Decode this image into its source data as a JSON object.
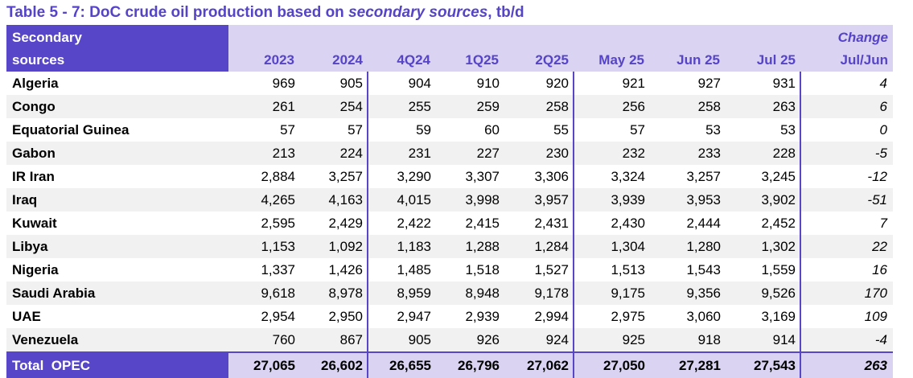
{
  "title": {
    "prefix": "Table 5 - 7: DoC crude oil production based on ",
    "italic": "secondary sources",
    "suffix": ", tb/d"
  },
  "colors": {
    "purple": "#5747C8",
    "lavender": "#DAD3F1",
    "title_text": "#5544C8",
    "header_text": "#5544C8",
    "stripe_gray": "#F1F1F1"
  },
  "table": {
    "header": {
      "label_line1": "Secondary",
      "label_line2": "sources",
      "columns": [
        "2023",
        "2024",
        "4Q24",
        "1Q25",
        "2Q25",
        "May 25",
        "Jun 25",
        "Jul 25"
      ],
      "change_line1": "Change",
      "change_line2": "Jul/Jun"
    },
    "rows": [
      {
        "name": "Algeria",
        "values": [
          "969",
          "905",
          "904",
          "910",
          "920",
          "921",
          "927",
          "931"
        ],
        "change": "4"
      },
      {
        "name": "Congo",
        "values": [
          "261",
          "254",
          "255",
          "259",
          "258",
          "256",
          "258",
          "263"
        ],
        "change": "6"
      },
      {
        "name": "Equatorial Guinea",
        "values": [
          "57",
          "57",
          "59",
          "60",
          "55",
          "57",
          "53",
          "53"
        ],
        "change": "0"
      },
      {
        "name": "Gabon",
        "values": [
          "213",
          "224",
          "231",
          "227",
          "230",
          "232",
          "233",
          "228"
        ],
        "change": "-5"
      },
      {
        "name": "IR Iran",
        "values": [
          "2,884",
          "3,257",
          "3,290",
          "3,307",
          "3,306",
          "3,324",
          "3,257",
          "3,245"
        ],
        "change": "-12"
      },
      {
        "name": "Iraq",
        "values": [
          "4,265",
          "4,163",
          "4,015",
          "3,998",
          "3,957",
          "3,939",
          "3,953",
          "3,902"
        ],
        "change": "-51"
      },
      {
        "name": "Kuwait",
        "values": [
          "2,595",
          "2,429",
          "2,422",
          "2,415",
          "2,431",
          "2,430",
          "2,444",
          "2,452"
        ],
        "change": "7"
      },
      {
        "name": "Libya",
        "values": [
          "1,153",
          "1,092",
          "1,183",
          "1,288",
          "1,284",
          "1,304",
          "1,280",
          "1,302"
        ],
        "change": "22"
      },
      {
        "name": "Nigeria",
        "values": [
          "1,337",
          "1,426",
          "1,485",
          "1,518",
          "1,527",
          "1,513",
          "1,543",
          "1,559"
        ],
        "change": "16"
      },
      {
        "name": "Saudi Arabia",
        "values": [
          "9,618",
          "8,978",
          "8,959",
          "8,948",
          "9,178",
          "9,175",
          "9,356",
          "9,526"
        ],
        "change": "170"
      },
      {
        "name": "UAE",
        "values": [
          "2,954",
          "2,950",
          "2,947",
          "2,939",
          "2,994",
          "2,975",
          "3,060",
          "3,169"
        ],
        "change": "109"
      },
      {
        "name": "Venezuela",
        "values": [
          "760",
          "867",
          "905",
          "926",
          "924",
          "925",
          "918",
          "914"
        ],
        "change": "-4"
      }
    ],
    "total": {
      "name": "Total  OPEC",
      "values": [
        "27,065",
        "26,602",
        "26,655",
        "26,796",
        "27,062",
        "27,050",
        "27,281",
        "27,543"
      ],
      "change": "263"
    }
  }
}
